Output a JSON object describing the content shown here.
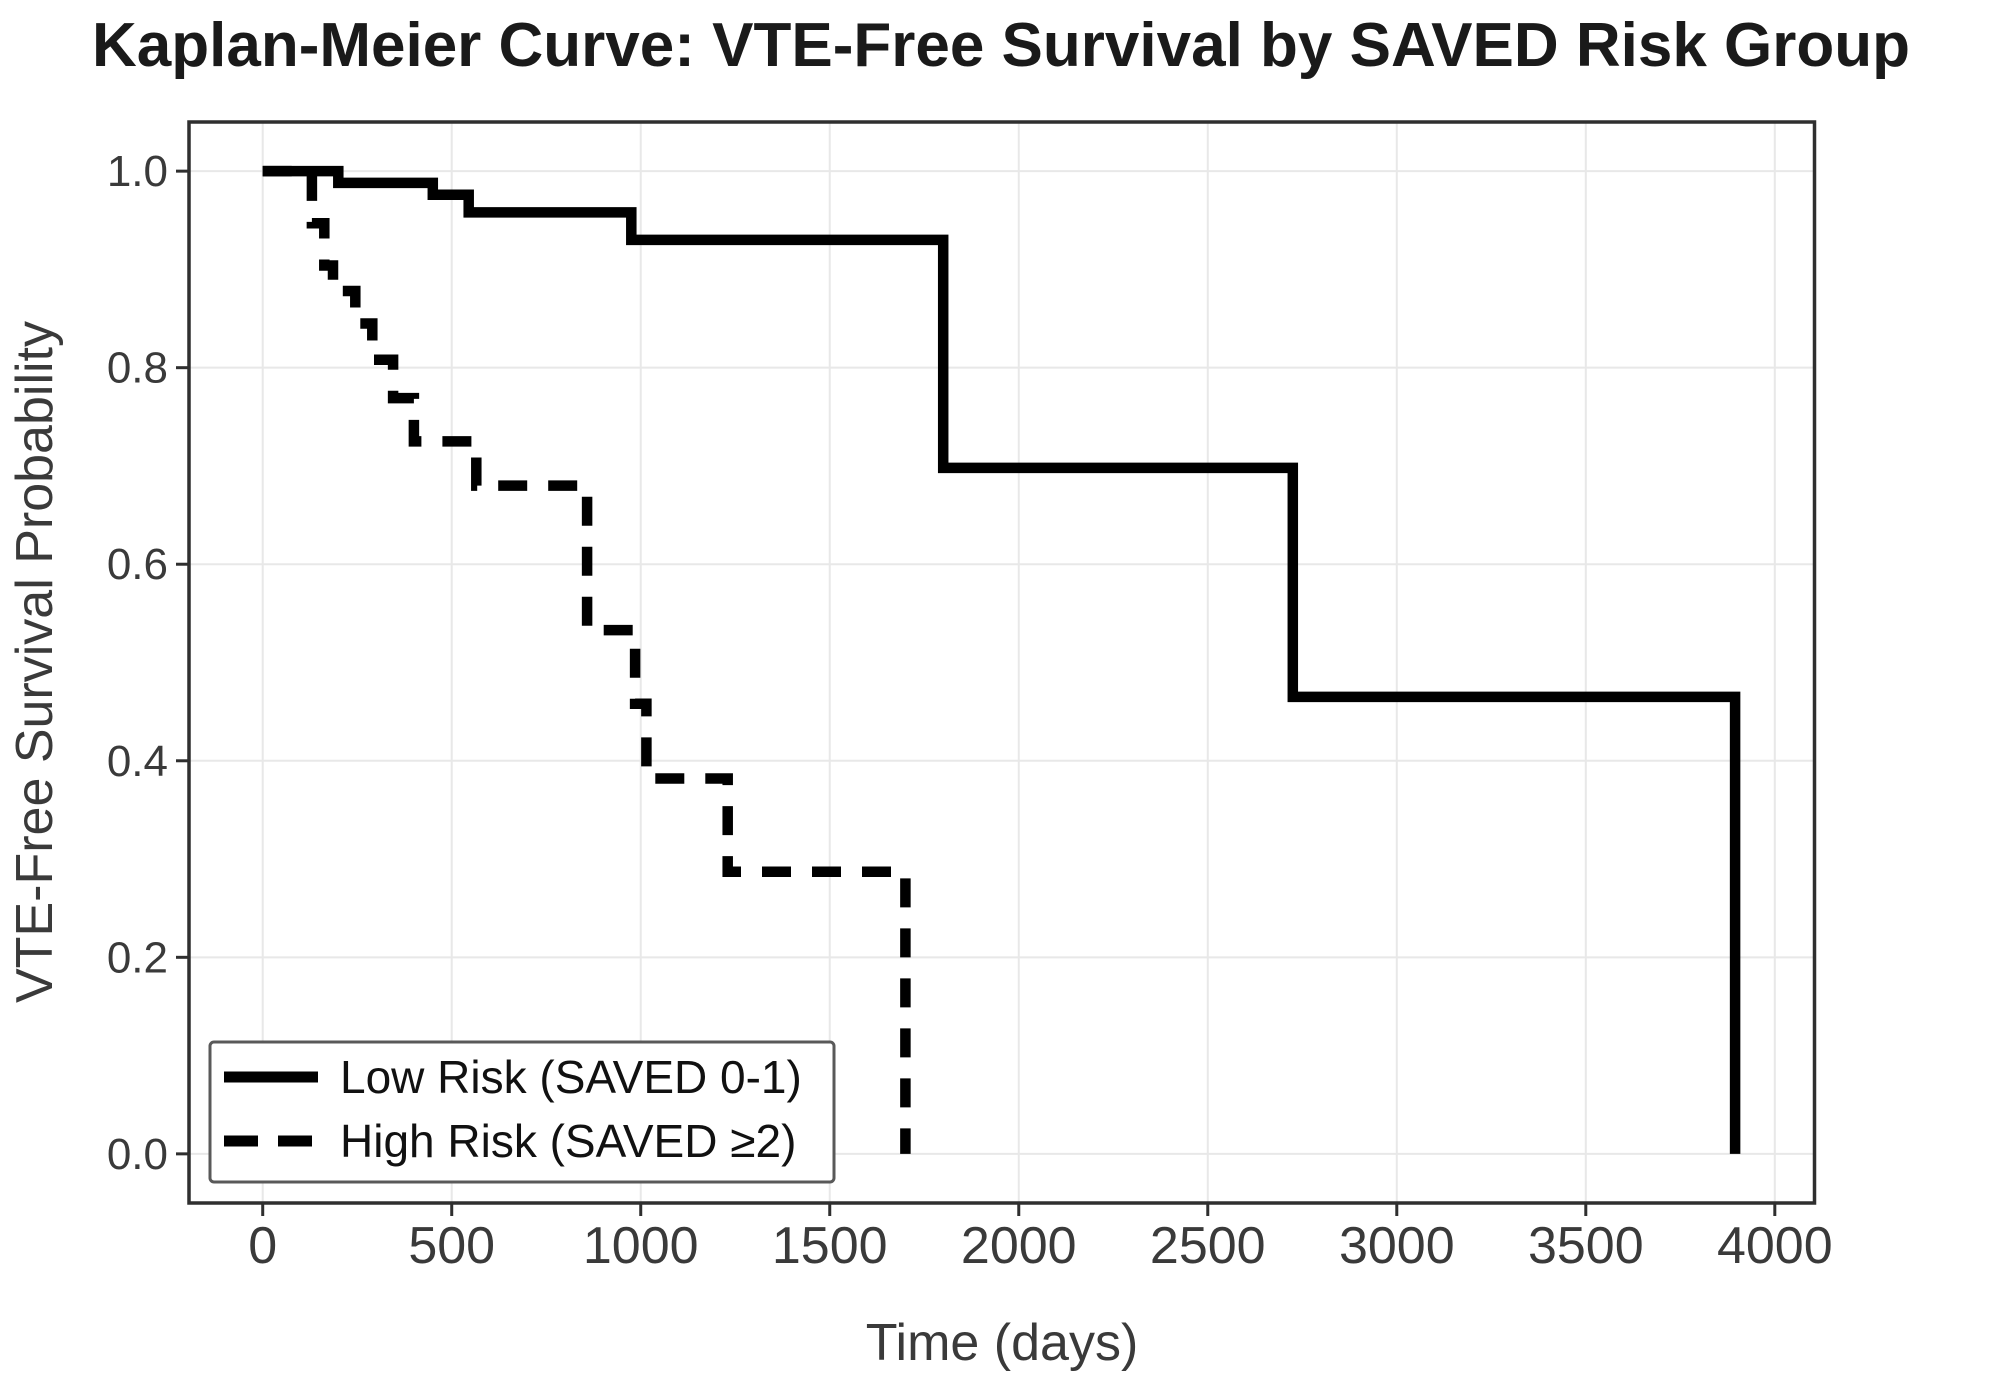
{
  "chart_data": {
    "type": "line",
    "variant": "kaplan_meier_step",
    "title": "Kaplan-Meier Curve: VTE-Free Survival by SAVED Risk Group",
    "xlabel": "Time (days)",
    "ylabel": "VTE-Free Survival Probability",
    "xlim": [
      -195,
      4105
    ],
    "ylim": [
      -0.05,
      1.05
    ],
    "xticks": [
      0,
      500,
      1000,
      1500,
      2000,
      2500,
      3000,
      3500,
      4000
    ],
    "xtick_labels": [
      "0",
      "500",
      "1000",
      "1500",
      "2000",
      "2500",
      "3000",
      "3500",
      "4000"
    ],
    "yticks": [
      0.0,
      0.2,
      0.4,
      0.6,
      0.8,
      1.0
    ],
    "ytick_labels": [
      "0.0",
      "0.2",
      "0.4",
      "0.6",
      "0.8",
      "1.0"
    ],
    "grid": true,
    "legend": {
      "position": "lower left",
      "entries": [
        {
          "label": "Low Risk (SAVED 0-1)",
          "line_style": "solid"
        },
        {
          "label": "High Risk (SAVED ≥2)",
          "line_style": "dashed"
        }
      ]
    },
    "series": [
      {
        "id": "low-risk",
        "name": "Low Risk (SAVED 0-1)",
        "line_style": "solid",
        "color": "#000000",
        "steps": [
          {
            "day": 0,
            "survival": 1.0
          },
          {
            "day": 200,
            "survival": 0.988
          },
          {
            "day": 450,
            "survival": 0.976
          },
          {
            "day": 545,
            "survival": 0.958
          },
          {
            "day": 975,
            "survival": 0.93
          },
          {
            "day": 1800,
            "survival": 0.698
          },
          {
            "day": 2725,
            "survival": 0.465
          },
          {
            "day": 3895,
            "survival": 0.0
          }
        ]
      },
      {
        "id": "high-risk",
        "name": "High Risk (SAVED ≥2)",
        "line_style": "dashed",
        "color": "#000000",
        "steps": [
          {
            "day": 0,
            "survival": 1.0
          },
          {
            "day": 130,
            "survival": 0.947
          },
          {
            "day": 163,
            "survival": 0.904
          },
          {
            "day": 186,
            "survival": 0.878
          },
          {
            "day": 245,
            "survival": 0.845
          },
          {
            "day": 290,
            "survival": 0.808
          },
          {
            "day": 345,
            "survival": 0.769
          },
          {
            "day": 400,
            "survival": 0.725
          },
          {
            "day": 565,
            "survival": 0.68
          },
          {
            "day": 858,
            "survival": 0.533
          },
          {
            "day": 985,
            "survival": 0.458
          },
          {
            "day": 1015,
            "survival": 0.382
          },
          {
            "day": 1230,
            "survival": 0.287
          },
          {
            "day": 1700,
            "survival": 0.0
          }
        ]
      }
    ],
    "colors": {
      "curve": "#000000",
      "grid": "#e8e8e8",
      "spine": "#2f2f2f",
      "tick_label": "#3a3a3a",
      "axis_label": "#3a3a3a",
      "title": "#1a1a1a",
      "legend_border": "#595959",
      "legend_background": "#ffffff",
      "figure_background": "#ffffff"
    }
  }
}
